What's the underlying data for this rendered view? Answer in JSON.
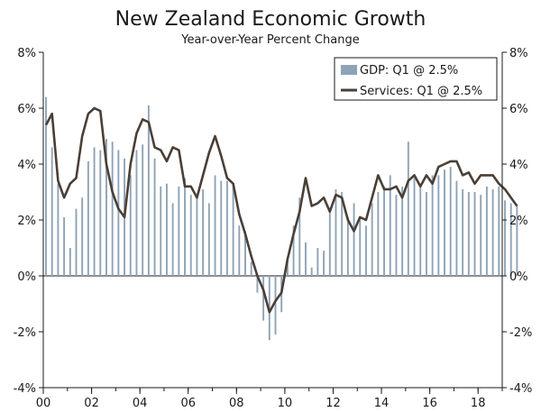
{
  "chart_data": {
    "type": "bar+line",
    "title": "New Zealand Economic Growth",
    "subtitle": "Year-over-Year Percent Change",
    "ylim": [
      -4,
      8
    ],
    "y_ticks": [
      -4,
      -2,
      0,
      2,
      4,
      6,
      8
    ],
    "y_tick_labels": [
      "-4%",
      "-2%",
      "0%",
      "2%",
      "4%",
      "6%",
      "8%"
    ],
    "x_range": [
      2000,
      2019
    ],
    "x_ticks": [
      2000,
      2002,
      2004,
      2006,
      2008,
      2010,
      2012,
      2014,
      2016,
      2018
    ],
    "x_tick_labels": [
      "00",
      "02",
      "04",
      "06",
      "08",
      "10",
      "12",
      "14",
      "16",
      "18"
    ],
    "colors": {
      "bars": "#8ea3b6",
      "line": "#4a3f36",
      "axis": "#1a1a1a"
    },
    "legend": {
      "position": "top-right",
      "entries": [
        {
          "key": "gdp",
          "label": "GDP: Q1 @ 2.5%"
        },
        {
          "key": "services",
          "label": "Services: Q1 @ 2.5%"
        }
      ]
    },
    "series": [
      {
        "name": "GDP",
        "type": "bar",
        "start": 2000.0,
        "step": 0.25,
        "values": [
          6.4,
          4.6,
          3.3,
          2.1,
          1.0,
          2.4,
          2.8,
          4.1,
          4.6,
          4.5,
          4.9,
          4.8,
          4.5,
          4.2,
          3.6,
          4.5,
          4.7,
          6.1,
          4.2,
          3.2,
          3.3,
          2.6,
          3.2,
          3.5,
          2.9,
          2.9,
          3.1,
          2.6,
          3.6,
          3.4,
          3.4,
          3.3,
          1.8,
          1.6,
          0.5,
          -0.6,
          -1.6,
          -2.3,
          -2.1,
          -1.3,
          0.6,
          1.8,
          2.8,
          1.2,
          0.3,
          1.0,
          0.9,
          2.3,
          3.1,
          3.0,
          2.1,
          2.6,
          2.1,
          1.8,
          2.6,
          3.0,
          3.2,
          3.6,
          2.9,
          3.2,
          4.8,
          3.5,
          3.3,
          3.0,
          3.6,
          3.6,
          3.8,
          3.9,
          3.4,
          3.1,
          3.0,
          3.0,
          2.9,
          3.2,
          3.1,
          3.2,
          2.7,
          2.6,
          2.5
        ]
      },
      {
        "name": "Services",
        "type": "line",
        "start": 2000.0,
        "step": 0.25,
        "values": [
          5.4,
          5.8,
          3.4,
          2.8,
          3.3,
          3.5,
          5.0,
          5.8,
          6.0,
          5.9,
          4.0,
          3.0,
          2.4,
          2.1,
          4.0,
          5.1,
          5.6,
          5.5,
          4.6,
          4.5,
          4.1,
          4.6,
          4.5,
          3.2,
          3.2,
          2.8,
          3.6,
          4.4,
          5.0,
          4.3,
          3.5,
          3.3,
          2.2,
          1.5,
          0.7,
          0.0,
          -0.5,
          -1.3,
          -0.9,
          -0.6,
          0.6,
          1.5,
          2.3,
          3.5,
          2.5,
          2.6,
          2.8,
          2.3,
          2.9,
          2.8,
          2.0,
          1.6,
          2.1,
          2.0,
          2.8,
          3.6,
          3.1,
          3.1,
          3.2,
          2.8,
          3.4,
          3.6,
          3.2,
          3.6,
          3.3,
          3.9,
          4.0,
          4.1,
          4.1,
          3.6,
          3.7,
          3.3,
          3.6,
          3.6,
          3.6,
          3.3,
          3.1,
          2.8,
          2.5
        ]
      }
    ]
  }
}
